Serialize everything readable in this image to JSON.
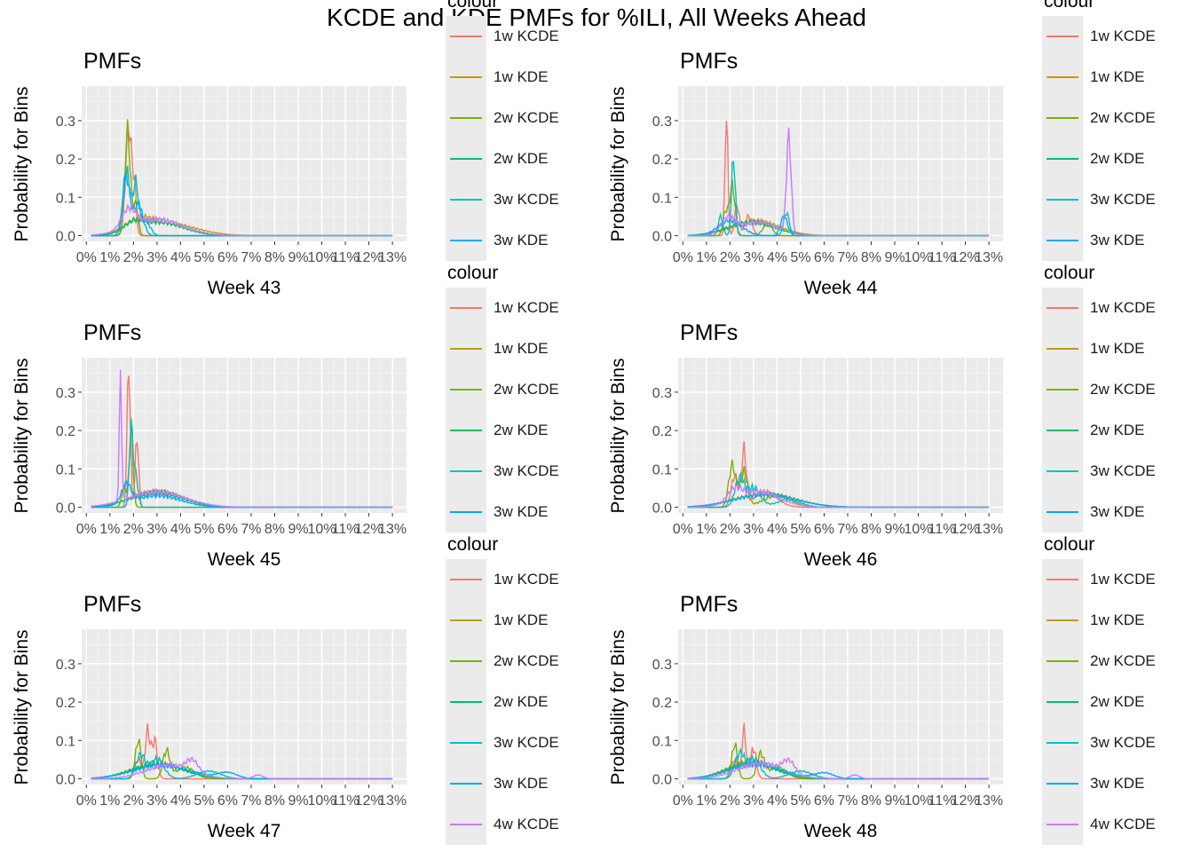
{
  "figure_title": "KCDE and KDE PMFs for %ILI, All Weeks Ahead",
  "colors": {
    "1w  KCDE": "#F8766D",
    "1w  KDE": "#C49A00",
    "2w KCDE": "#7CAE00",
    "2w KDE": "#00BE67",
    "3w KCDE": "#00BFC4",
    "3w KDE": "#00A9FF",
    "4w KCDE": "#C77CFF"
  },
  "panels": [
    {
      "title": "PMFs",
      "xlabel": "Week 43",
      "ylabel": "Probability for Bins",
      "legend_title": "colour",
      "legend_items": [
        "1w  KCDE",
        "1w  KDE",
        "2w KCDE",
        "2w KDE",
        "3w KCDE",
        "3w KDE"
      ]
    },
    {
      "title": "PMFs",
      "xlabel": "Week 44",
      "ylabel": "Probability for Bins",
      "legend_title": "colour",
      "legend_items": [
        "1w  KCDE",
        "1w  KDE",
        "2w KCDE",
        "2w KDE",
        "3w KCDE",
        "3w KDE"
      ]
    },
    {
      "title": "PMFs",
      "xlabel": "Week 45",
      "ylabel": "Probability for Bins",
      "legend_title": "colour",
      "legend_items": [
        "1w  KCDE",
        "1w  KDE",
        "2w KCDE",
        "2w KDE",
        "3w KCDE",
        "3w KDE"
      ]
    },
    {
      "title": "PMFs",
      "xlabel": "Week 46",
      "ylabel": "Probability for Bins",
      "legend_title": "colour",
      "legend_items": [
        "1w  KCDE",
        "1w  KDE",
        "2w KCDE",
        "2w KDE",
        "3w KCDE",
        "3w KDE"
      ]
    },
    {
      "title": "PMFs",
      "xlabel": "Week 47",
      "ylabel": "Probability for Bins",
      "legend_title": "colour",
      "legend_items": [
        "1w  KCDE",
        "1w  KDE",
        "2w KCDE",
        "2w KDE",
        "3w KCDE",
        "3w KDE",
        "4w KCDE"
      ]
    },
    {
      "title": "PMFs",
      "xlabel": "Week 48",
      "ylabel": "Probability for Bins",
      "legend_title": "colour",
      "legend_items": [
        "1w  KCDE",
        "1w  KDE",
        "2w KCDE",
        "2w KDE",
        "3w KCDE",
        "3w KDE",
        "4w KCDE"
      ]
    }
  ],
  "chart_data": [
    {
      "type": "line",
      "xlabel": "Week 43",
      "ylabel": "Probability for Bins",
      "title": "PMFs",
      "x_ticks": [
        "0%",
        "1%",
        "2%",
        "3%",
        "4%",
        "5%",
        "6%",
        "7%",
        "8%",
        "9%",
        "10%",
        "11%",
        "12%",
        "13%"
      ],
      "y_ticks": [
        "0.0",
        "0.1",
        "0.2",
        "0.3"
      ],
      "xlim": [
        -0.2,
        13.6
      ],
      "ylim": [
        -0.015,
        0.39
      ],
      "grid": true,
      "legend": "right",
      "series": [
        {
          "name": "1w  KCDE",
          "peaks": [
            [
              1.8,
              0.285,
              0.13
            ],
            [
              2.05,
              0.1,
              0.08
            ]
          ]
        },
        {
          "name": "1w  KDE",
          "peaks": [
            [
              2.2,
              0.03,
              0.6
            ],
            [
              3.5,
              0.03,
              1.2
            ]
          ]
        },
        {
          "name": "2w KCDE",
          "peaks": [
            [
              1.75,
              0.27,
              0.12
            ],
            [
              2.1,
              0.08,
              0.1
            ]
          ]
        },
        {
          "name": "2w KDE",
          "peaks": [
            [
              2.0,
              0.02,
              0.4
            ],
            [
              3.1,
              0.035,
              1.0
            ]
          ]
        },
        {
          "name": "3w KCDE",
          "peaks": [
            [
              1.7,
              0.17,
              0.15
            ],
            [
              2.1,
              0.13,
              0.12
            ],
            [
              2.5,
              0.04,
              0.2
            ]
          ]
        },
        {
          "name": "3w KDE",
          "peaks": [
            [
              1.7,
              0.15,
              0.15
            ],
            [
              2.2,
              0.08,
              0.2
            ]
          ]
        },
        {
          "name": "4w KCDE",
          "peaks": [
            [
              3.0,
              0.042,
              1.1
            ],
            [
              1.8,
              0.05,
              0.3
            ]
          ]
        }
      ]
    },
    {
      "type": "line",
      "xlabel": "Week 44",
      "ylabel": "Probability for Bins",
      "title": "PMFs",
      "x_ticks": [
        "0%",
        "1%",
        "2%",
        "3%",
        "4%",
        "5%",
        "6%",
        "7%",
        "8%",
        "9%",
        "10%",
        "11%",
        "12%",
        "13%"
      ],
      "y_ticks": [
        "0.0",
        "0.1",
        "0.2",
        "0.3"
      ],
      "xlim": [
        -0.2,
        13.6
      ],
      "ylim": [
        -0.015,
        0.39
      ],
      "grid": true,
      "legend": "right",
      "series": [
        {
          "name": "1w  KCDE",
          "peaks": [
            [
              1.85,
              0.325,
              0.06
            ],
            [
              2.3,
              0.08,
              0.1
            ],
            [
              2.8,
              0.05,
              0.15
            ]
          ]
        },
        {
          "name": "1w  KDE",
          "peaks": [
            [
              3.1,
              0.038,
              1.0
            ]
          ]
        },
        {
          "name": "2w KCDE",
          "peaks": [
            [
              2.1,
              0.13,
              0.12
            ],
            [
              1.8,
              0.06,
              0.1
            ],
            [
              3.6,
              0.03,
              0.2
            ]
          ]
        },
        {
          "name": "2w KDE",
          "peaks": [
            [
              2.9,
              0.035,
              1.0
            ]
          ]
        },
        {
          "name": "3w KCDE",
          "peaks": [
            [
              2.15,
              0.205,
              0.08
            ],
            [
              1.6,
              0.05,
              0.1
            ],
            [
              4.4,
              0.06,
              0.12
            ]
          ]
        },
        {
          "name": "3w KDE",
          "peaks": [
            [
              2.0,
              0.04,
              0.5
            ],
            [
              4.3,
              0.05,
              0.15
            ]
          ]
        },
        {
          "name": "4w KCDE",
          "peaks": [
            [
              4.5,
              0.25,
              0.1
            ],
            [
              1.9,
              0.04,
              0.3
            ],
            [
              3.2,
              0.035,
              0.8
            ]
          ]
        }
      ]
    },
    {
      "type": "line",
      "xlabel": "Week 45",
      "ylabel": "Probability for Bins",
      "title": "PMFs",
      "x_ticks": [
        "0%",
        "1%",
        "2%",
        "3%",
        "4%",
        "5%",
        "6%",
        "7%",
        "8%",
        "9%",
        "10%",
        "11%",
        "12%",
        "13%"
      ],
      "y_ticks": [
        "0.0",
        "0.1",
        "0.2",
        "0.3"
      ],
      "xlim": [
        -0.2,
        13.6
      ],
      "ylim": [
        -0.015,
        0.39
      ],
      "grid": true,
      "legend": "right",
      "series": [
        {
          "name": "1w  KCDE",
          "peaks": [
            [
              1.8,
              0.37,
              0.07
            ],
            [
              2.15,
              0.19,
              0.07
            ]
          ]
        },
        {
          "name": "1w  KDE",
          "peaks": [
            [
              3.0,
              0.04,
              1.1
            ]
          ]
        },
        {
          "name": "2w KCDE",
          "peaks": [
            [
              1.9,
              0.21,
              0.08
            ],
            [
              1.6,
              0.05,
              0.1
            ]
          ]
        },
        {
          "name": "2w KDE",
          "peaks": [
            [
              3.0,
              0.038,
              1.1
            ]
          ]
        },
        {
          "name": "3w KCDE",
          "peaks": [
            [
              1.9,
              0.2,
              0.08
            ],
            [
              2.1,
              0.08,
              0.1
            ]
          ]
        },
        {
          "name": "3w KDE",
          "peaks": [
            [
              1.7,
              0.05,
              0.2
            ],
            [
              3.0,
              0.03,
              1.0
            ]
          ]
        },
        {
          "name": "4w KCDE",
          "peaks": [
            [
              1.45,
              0.32,
              0.05
            ],
            [
              3.0,
              0.04,
              1.2
            ]
          ]
        }
      ]
    },
    {
      "type": "line",
      "xlabel": "Week 46",
      "ylabel": "Probability for Bins",
      "title": "PMFs",
      "x_ticks": [
        "0%",
        "1%",
        "2%",
        "3%",
        "4%",
        "5%",
        "6%",
        "7%",
        "8%",
        "9%",
        "10%",
        "11%",
        "12%",
        "13%"
      ],
      "y_ticks": [
        "0.0",
        "0.1",
        "0.2",
        "0.3"
      ],
      "xlim": [
        -0.2,
        13.6
      ],
      "ylim": [
        -0.015,
        0.39
      ],
      "grid": true,
      "legend": "right",
      "series": [
        {
          "name": "1w  KCDE",
          "peaks": [
            [
              2.6,
              0.14,
              0.1
            ],
            [
              2.2,
              0.08,
              0.15
            ],
            [
              3.5,
              0.04,
              0.5
            ]
          ]
        },
        {
          "name": "1w  KDE",
          "peaks": [
            [
              3.5,
              0.035,
              1.3
            ]
          ]
        },
        {
          "name": "2w KCDE",
          "peaks": [
            [
              2.1,
              0.11,
              0.15
            ],
            [
              2.6,
              0.09,
              0.15
            ],
            [
              4.0,
              0.03,
              0.6
            ]
          ]
        },
        {
          "name": "2w KDE",
          "peaks": [
            [
              3.5,
              0.033,
              1.3
            ]
          ]
        },
        {
          "name": "3w KCDE",
          "peaks": [
            [
              2.4,
              0.07,
              0.2
            ],
            [
              3.0,
              0.05,
              0.3
            ],
            [
              4.5,
              0.02,
              0.5
            ]
          ]
        },
        {
          "name": "3w KDE",
          "peaks": [
            [
              3.5,
              0.033,
              1.3
            ]
          ]
        },
        {
          "name": "4w KCDE",
          "peaks": [
            [
              3.2,
              0.04,
              0.9
            ],
            [
              2.2,
              0.03,
              0.3
            ]
          ]
        }
      ]
    },
    {
      "type": "line",
      "xlabel": "Week 47",
      "ylabel": "Probability for Bins",
      "title": "PMFs",
      "x_ticks": [
        "0%",
        "1%",
        "2%",
        "3%",
        "4%",
        "5%",
        "6%",
        "7%",
        "8%",
        "9%",
        "10%",
        "11%",
        "12%",
        "13%"
      ],
      "y_ticks": [
        "0.0",
        "0.1",
        "0.2",
        "0.3"
      ],
      "xlim": [
        -0.2,
        13.6
      ],
      "ylim": [
        -0.015,
        0.39
      ],
      "grid": true,
      "legend": "right",
      "series": [
        {
          "name": "1w  KCDE",
          "peaks": [
            [
              2.6,
              0.12,
              0.1
            ],
            [
              2.9,
              0.1,
              0.12
            ],
            [
              2.2,
              0.05,
              0.15
            ]
          ]
        },
        {
          "name": "1w  KDE",
          "peaks": [
            [
              3.0,
              0.04,
              1.1
            ]
          ]
        },
        {
          "name": "2w KCDE",
          "peaks": [
            [
              2.2,
              0.1,
              0.12
            ],
            [
              3.4,
              0.07,
              0.15
            ],
            [
              4.2,
              0.03,
              0.4
            ]
          ]
        },
        {
          "name": "2w KDE",
          "peaks": [
            [
              3.0,
              0.038,
              1.1
            ]
          ]
        },
        {
          "name": "3w KCDE",
          "peaks": [
            [
              2.3,
              0.06,
              0.2
            ],
            [
              3.0,
              0.05,
              0.3
            ],
            [
              5.2,
              0.02,
              0.5
            ]
          ]
        },
        {
          "name": "3w KDE",
          "peaks": [
            [
              3.2,
              0.035,
              1.2
            ],
            [
              6.0,
              0.015,
              0.4
            ]
          ]
        },
        {
          "name": "4w KCDE",
          "peaks": [
            [
              3.5,
              0.035,
              1.0
            ],
            [
              4.5,
              0.03,
              0.25
            ],
            [
              7.3,
              0.01,
              0.2
            ]
          ]
        }
      ]
    },
    {
      "type": "line",
      "xlabel": "Week 48",
      "ylabel": "Probability for Bins",
      "title": "PMFs",
      "x_ticks": [
        "0%",
        "1%",
        "2%",
        "3%",
        "4%",
        "5%",
        "6%",
        "7%",
        "8%",
        "9%",
        "10%",
        "11%",
        "12%",
        "13%"
      ],
      "y_ticks": [
        "0.0",
        "0.1",
        "0.2",
        "0.3"
      ],
      "xlim": [
        -0.2,
        13.6
      ],
      "ylim": [
        -0.015,
        0.39
      ],
      "grid": true,
      "legend": "right",
      "series": [
        {
          "name": "1w  KCDE",
          "peaks": [
            [
              2.6,
              0.125,
              0.09
            ],
            [
              3.0,
              0.08,
              0.12
            ],
            [
              2.2,
              0.05,
              0.15
            ]
          ]
        },
        {
          "name": "1w  KDE",
          "peaks": [
            [
              2.9,
              0.045,
              1.0
            ]
          ]
        },
        {
          "name": "2w KCDE",
          "peaks": [
            [
              2.2,
              0.09,
              0.12
            ],
            [
              3.3,
              0.06,
              0.15
            ],
            [
              4.0,
              0.03,
              0.4
            ]
          ]
        },
        {
          "name": "2w KDE",
          "peaks": [
            [
              2.9,
              0.042,
              1.0
            ]
          ]
        },
        {
          "name": "3w KCDE",
          "peaks": [
            [
              2.4,
              0.06,
              0.2
            ],
            [
              3.0,
              0.05,
              0.3
            ],
            [
              5.0,
              0.02,
              0.5
            ]
          ]
        },
        {
          "name": "3w KDE",
          "peaks": [
            [
              3.1,
              0.038,
              1.1
            ],
            [
              6.0,
              0.015,
              0.4
            ]
          ]
        },
        {
          "name": "4w KCDE",
          "peaks": [
            [
              3.3,
              0.04,
              1.0
            ],
            [
              4.5,
              0.03,
              0.25
            ],
            [
              7.3,
              0.01,
              0.2
            ]
          ]
        }
      ]
    }
  ]
}
